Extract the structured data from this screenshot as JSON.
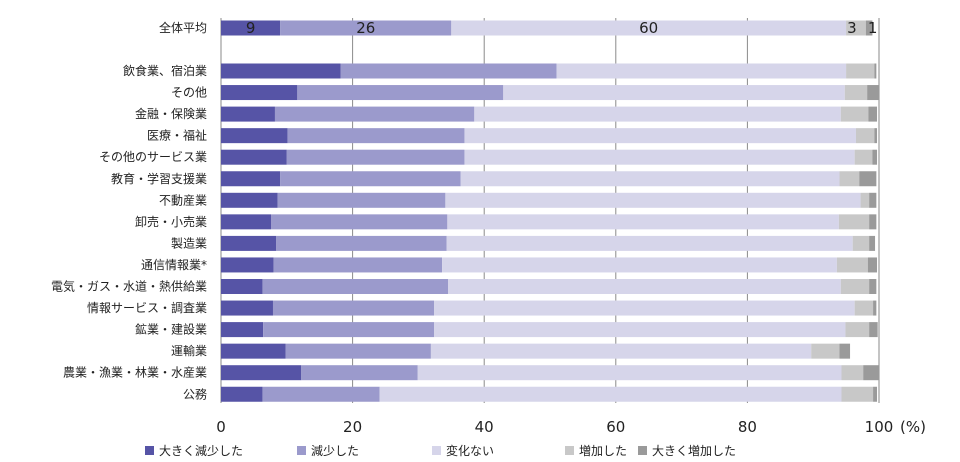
{
  "chart_data": {
    "type": "bar",
    "orientation": "horizontal",
    "stacked": true,
    "unit": "(%)",
    "xlim": [
      0,
      100
    ],
    "xticks": [
      "0",
      "20",
      "40",
      "60",
      "80",
      "100"
    ],
    "grid": true,
    "legend_position": "bottom",
    "categories": [
      "全体平均",
      "飲食業、宿泊業",
      "その他",
      "金融・保険業",
      "医療・福祉",
      "その他のサービス業",
      "教育・学習支援業",
      "不動産業",
      "卸売・小売業",
      "製造業",
      "通信情報業*",
      "電気・ガス・水道・熱供給業",
      "情報サービス・調査業",
      "鉱業・建設業",
      "運輸業",
      "農業・漁業・林業・水産業",
      "公務"
    ],
    "series": [
      {
        "name": "大きく減少した",
        "color": "#5654a6",
        "values": [
          9,
          18.2,
          11.6,
          8.2,
          10.1,
          10.0,
          9.0,
          8.6,
          7.6,
          8.4,
          8.0,
          6.3,
          7.9,
          6.4,
          9.8,
          12.2,
          6.3
        ]
      },
      {
        "name": "減少した",
        "color": "#9b9acc",
        "values": [
          26,
          32.8,
          31.3,
          30.3,
          26.9,
          27.0,
          27.4,
          25.5,
          26.8,
          25.9,
          25.6,
          28.2,
          24.5,
          26.0,
          22.1,
          17.7,
          17.8
        ]
      },
      {
        "name": "変化ない",
        "color": "#d6d5ea",
        "values": [
          60,
          44.0,
          51.9,
          55.7,
          59.5,
          59.3,
          57.6,
          63.1,
          59.5,
          61.7,
          60.0,
          59.7,
          63.9,
          62.5,
          57.8,
          64.4,
          70.2
        ]
      },
      {
        "name": "増加した",
        "color": "#c8c8c8",
        "values": [
          3,
          4.3,
          3.4,
          4.2,
          2.8,
          2.7,
          3.0,
          1.3,
          4.6,
          2.5,
          4.7,
          4.3,
          2.8,
          3.6,
          4.3,
          3.3,
          4.8
        ]
      },
      {
        "name": "大きく増加した",
        "color": "#9a9a9a",
        "values": [
          1,
          0.3,
          1.8,
          1.3,
          0.4,
          0.7,
          2.6,
          1.1,
          1.1,
          0.9,
          1.4,
          1.1,
          0.5,
          1.3,
          1.6,
          2.4,
          0.6
        ]
      }
    ],
    "data_labels": [
      {
        "category_index": 0,
        "series_index": 0,
        "text": "9"
      },
      {
        "category_index": 0,
        "series_index": 1,
        "text": "26"
      },
      {
        "category_index": 0,
        "series_index": 2,
        "text": "60"
      },
      {
        "category_index": 0,
        "series_index": 3,
        "text": "3"
      },
      {
        "category_index": 0,
        "series_index": 4,
        "text": "1"
      }
    ]
  }
}
